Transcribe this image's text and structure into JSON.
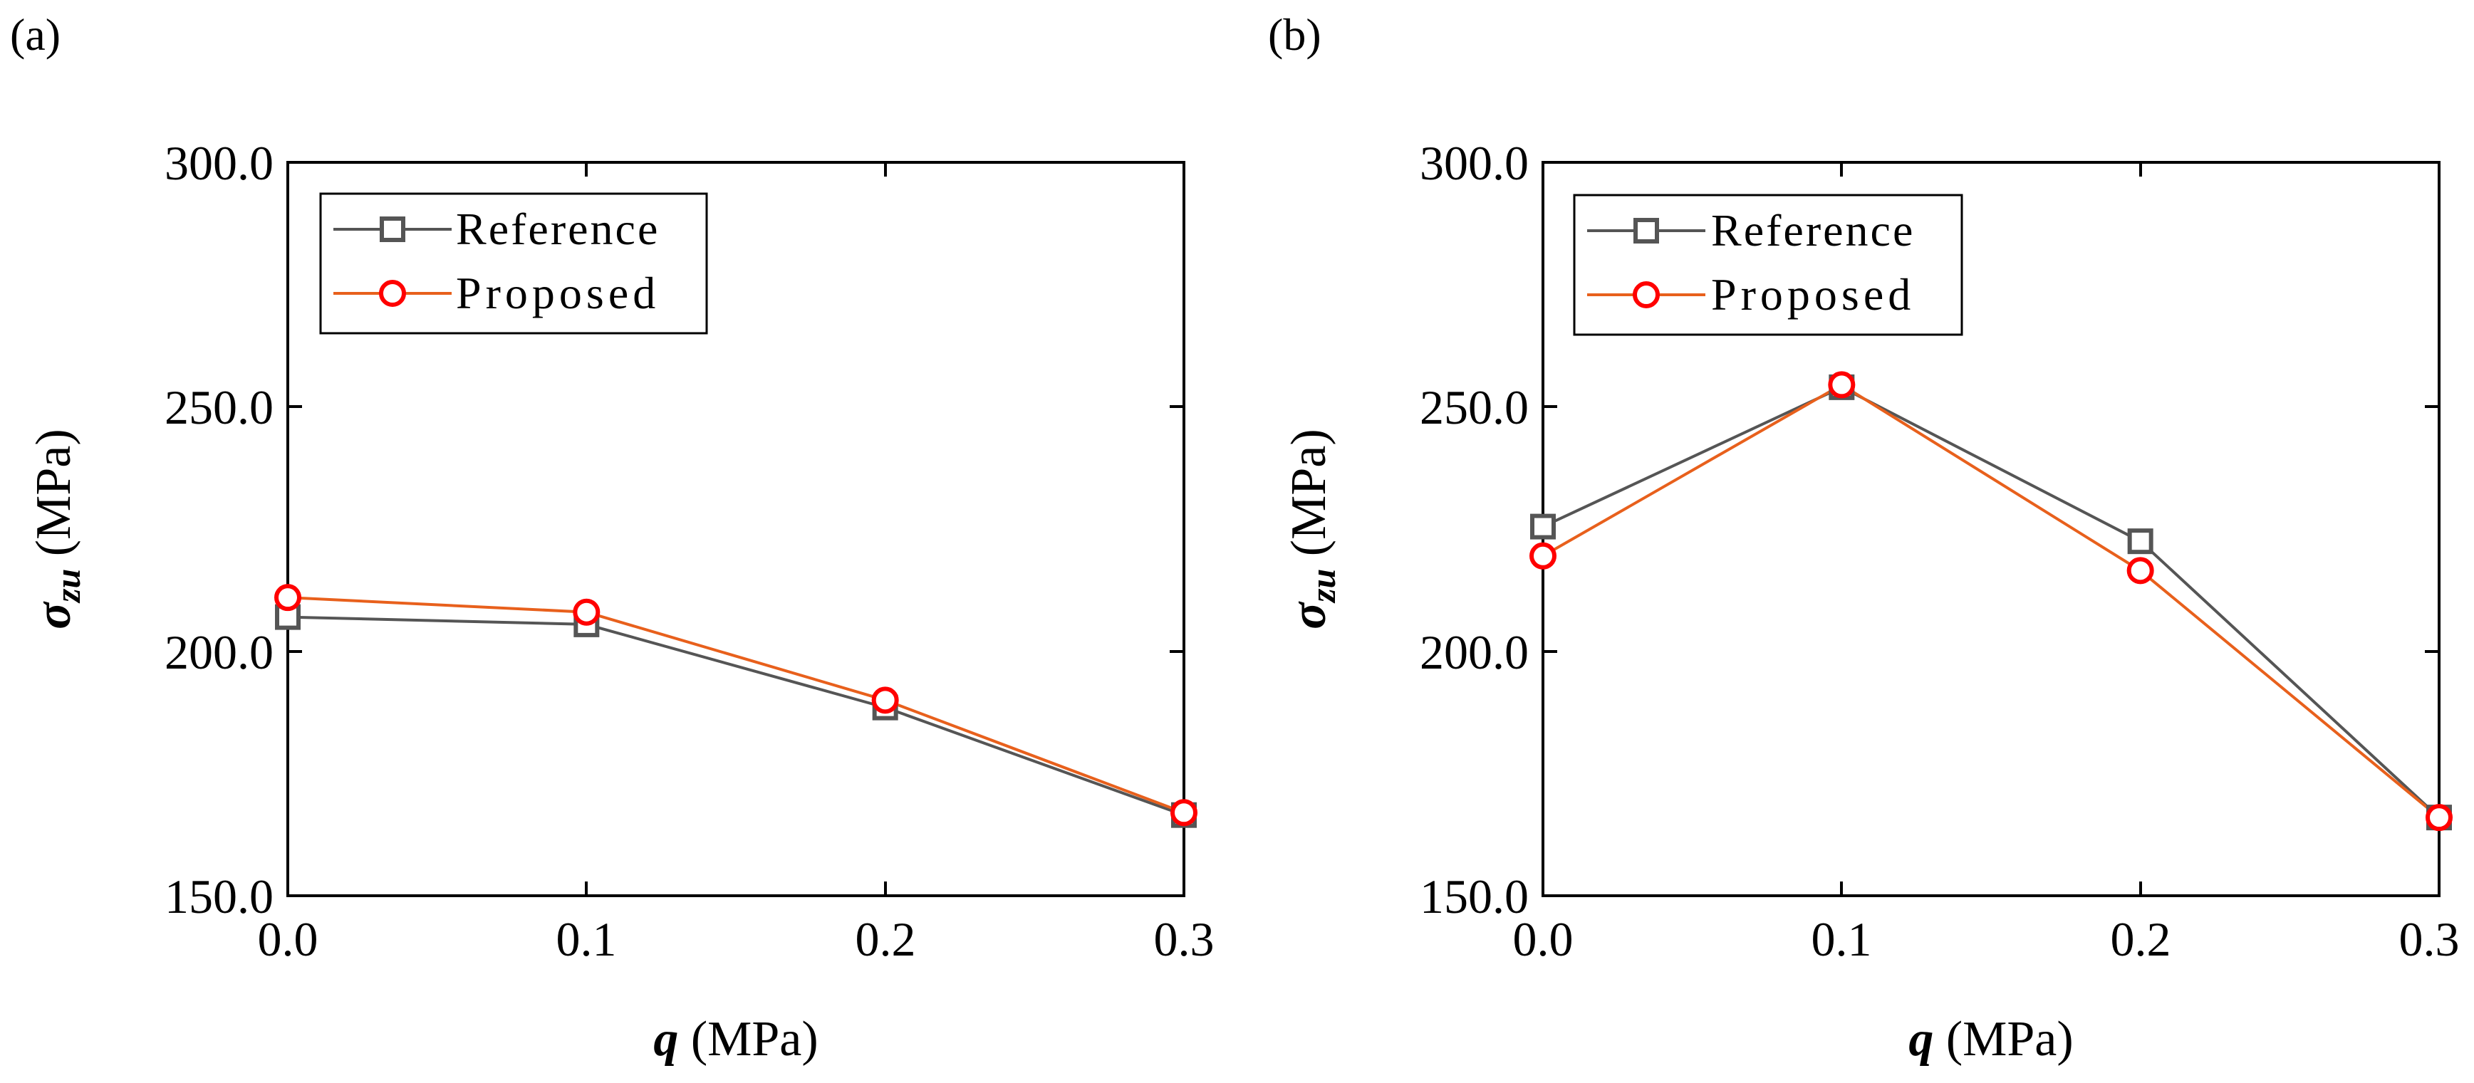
{
  "figure": {
    "panels": [
      {
        "label": "(a)",
        "ylabel_symbol": "σ",
        "ylabel_sub": "zu",
        "ylabel_unit": " (MPa)",
        "xlabel_symbol": "q",
        "xlabel_unit": " (MPa)"
      },
      {
        "label": "(b)",
        "ylabel_symbol": "σ",
        "ylabel_sub": "zu",
        "ylabel_unit": " (MPa)",
        "xlabel_symbol": "q",
        "xlabel_unit": " (MPa)"
      }
    ]
  },
  "colors": {
    "reference": "#555555",
    "proposed": "#E8601C",
    "marker_proposed": "#FF0000",
    "axis": "#000000"
  },
  "chart_data": [
    {
      "type": "line",
      "title": "",
      "panel_label": "(a)",
      "xlabel": "q (MPa)",
      "ylabel": "σzu (MPa)",
      "x": [
        0.0,
        0.1,
        0.2,
        0.3
      ],
      "xticks": [
        "0.0",
        "0.1",
        "0.2",
        "0.3"
      ],
      "yticks": [
        "150.0",
        "200.0",
        "250.0",
        "300.0"
      ],
      "xlim": [
        0.0,
        0.3
      ],
      "ylim": [
        150.0,
        300.0
      ],
      "legend_position": "top-left",
      "series": [
        {
          "name": "Reference",
          "marker": "square",
          "values": [
            207.0,
            205.5,
            188.5,
            166.5
          ]
        },
        {
          "name": "Proposed",
          "marker": "circle",
          "values": [
            211.0,
            208.0,
            190.0,
            167.0
          ]
        }
      ]
    },
    {
      "type": "line",
      "title": "",
      "panel_label": "(b)",
      "xlabel": "q (MPa)",
      "ylabel": "σzu (MPa)",
      "x": [
        0.0,
        0.1,
        0.2,
        0.3
      ],
      "xticks": [
        "0.0",
        "0.1",
        "0.2",
        "0.3"
      ],
      "yticks": [
        "150.0",
        "200.0",
        "250.0",
        "300.0"
      ],
      "xlim": [
        0.0,
        0.3
      ],
      "ylim": [
        150.0,
        300.0
      ],
      "legend_position": "top-left",
      "series": [
        {
          "name": "Reference",
          "marker": "square",
          "values": [
            225.5,
            254.0,
            222.5,
            166.0
          ]
        },
        {
          "name": "Proposed",
          "marker": "circle",
          "values": [
            219.5,
            254.5,
            216.5,
            166.0
          ]
        }
      ]
    }
  ]
}
